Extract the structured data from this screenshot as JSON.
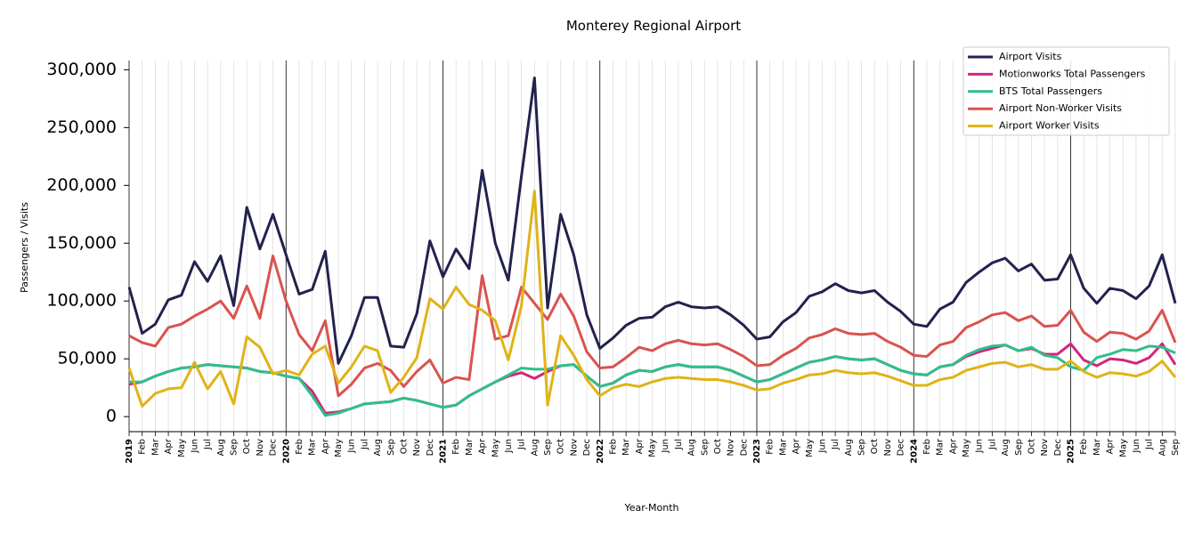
{
  "chart_data": {
    "type": "line",
    "title": "Monterey Regional Airport",
    "xlabel": "Year-Month",
    "ylabel": "Passengers / Visits",
    "categories": [
      "2019",
      "Feb",
      "Mar",
      "Apr",
      "May",
      "Jun",
      "Jul",
      "Aug",
      "Sep",
      "Oct",
      "Nov",
      "Dec",
      "2020",
      "Feb",
      "Mar",
      "Apr",
      "May",
      "Jun",
      "Jul",
      "Aug",
      "Sep",
      "Oct",
      "Nov",
      "Dec",
      "2021",
      "Feb",
      "Mar",
      "Apr",
      "May",
      "Jun",
      "Jul",
      "Aug",
      "Sep",
      "Oct",
      "Nov",
      "Dec",
      "2022",
      "Feb",
      "Mar",
      "Apr",
      "May",
      "Jun",
      "Jul",
      "Aug",
      "Sep",
      "Oct",
      "Nov",
      "Dec",
      "2023",
      "Feb",
      "Mar",
      "Apr",
      "May",
      "Jun",
      "Jul",
      "Aug",
      "Sep",
      "Oct",
      "Nov",
      "Dec",
      "2024",
      "Feb",
      "Mar",
      "Apr",
      "May",
      "Jun",
      "Jul",
      "Aug",
      "Sep",
      "Oct",
      "Nov",
      "Dec",
      "2025",
      "Feb",
      "Mar",
      "Apr",
      "May",
      "Jun",
      "Jul",
      "Aug",
      "Sep"
    ],
    "series": [
      {
        "name": "Airport Visits",
        "color": "#22224f",
        "values": [
          112000,
          72000,
          80000,
          101000,
          105000,
          134000,
          117000,
          139000,
          96000,
          181000,
          145000,
          175000,
          140000,
          106000,
          110000,
          143000,
          46000,
          70000,
          103000,
          103000,
          61000,
          60000,
          89000,
          152000,
          121000,
          145000,
          128000,
          213000,
          150000,
          118000,
          208000,
          293000,
          94000,
          175000,
          140000,
          88000,
          59000,
          68000,
          79000,
          85000,
          86000,
          95000,
          99000,
          95000,
          94000,
          95000,
          88000,
          79000,
          67000,
          69000,
          82000,
          90000,
          104000,
          108000,
          115000,
          109000,
          107000,
          109000,
          99000,
          91000,
          80000,
          78000,
          93000,
          99000,
          116000,
          125000,
          133000,
          137000,
          126000,
          132000,
          118000,
          119000,
          140000,
          111000,
          98000,
          111000,
          109000,
          102000,
          113000,
          140000,
          98000
        ]
      },
      {
        "name": "Motionworks Total Passengers",
        "color": "#d4247f",
        "values": [
          28000,
          30000,
          35000,
          39000,
          42000,
          43000,
          45000,
          44000,
          43000,
          42000,
          39000,
          38000,
          35000,
          33000,
          22000,
          3000,
          4000,
          7000,
          11000,
          12000,
          13000,
          16000,
          14000,
          11000,
          8000,
          10000,
          18000,
          24000,
          30000,
          35000,
          38000,
          33000,
          39000,
          44000,
          45000,
          35000,
          26000,
          29000,
          36000,
          40000,
          39000,
          43000,
          45000,
          43000,
          43000,
          43000,
          40000,
          35000,
          30000,
          32000,
          37000,
          42000,
          47000,
          49000,
          52000,
          50000,
          49000,
          50000,
          45000,
          40000,
          37000,
          36000,
          43000,
          45000,
          52000,
          56000,
          59000,
          62000,
          57000,
          59000,
          54000,
          54000,
          63000,
          49000,
          44000,
          50000,
          49000,
          46000,
          51000,
          63000,
          45000
        ]
      },
      {
        "name": "BTS Total Passengers",
        "color": "#2ec08a",
        "values": [
          30000,
          30000,
          35000,
          39000,
          42000,
          43000,
          45000,
          44000,
          43000,
          42000,
          39000,
          38000,
          35000,
          33000,
          18000,
          1000,
          3000,
          7000,
          11000,
          12000,
          13000,
          16000,
          14000,
          11000,
          8000,
          10000,
          18000,
          24000,
          30000,
          36000,
          42000,
          41000,
          41000,
          44000,
          45000,
          35000,
          26000,
          29000,
          36000,
          40000,
          39000,
          43000,
          45000,
          43000,
          43000,
          43000,
          40000,
          35000,
          30000,
          32000,
          37000,
          42000,
          47000,
          49000,
          52000,
          50000,
          49000,
          50000,
          45000,
          40000,
          37000,
          36000,
          43000,
          45000,
          53000,
          58000,
          61000,
          62000,
          57000,
          60000,
          53000,
          51000,
          43000,
          40000,
          51000,
          54000,
          58000,
          57000,
          61000,
          60000,
          55000
        ]
      },
      {
        "name": "Airport Non-Worker Visits",
        "color": "#d9534f",
        "values": [
          70000,
          64000,
          61000,
          77000,
          80000,
          87000,
          93000,
          100000,
          85000,
          113000,
          85000,
          139000,
          100000,
          71000,
          57000,
          83000,
          18000,
          28000,
          42000,
          46000,
          40000,
          26000,
          39000,
          49000,
          29000,
          34000,
          32000,
          122000,
          67000,
          70000,
          112000,
          98000,
          84000,
          106000,
          87000,
          56000,
          42000,
          43000,
          51000,
          60000,
          57000,
          63000,
          66000,
          63000,
          62000,
          63000,
          58000,
          52000,
          44000,
          45000,
          53000,
          59000,
          68000,
          71000,
          76000,
          72000,
          71000,
          72000,
          65000,
          60000,
          53000,
          52000,
          62000,
          65000,
          77000,
          82000,
          88000,
          90000,
          83000,
          87000,
          78000,
          79000,
          92000,
          73000,
          65000,
          73000,
          72000,
          67000,
          74000,
          92000,
          64000
        ]
      },
      {
        "name": "Airport Worker Visits",
        "color": "#e0b317",
        "values": [
          42000,
          9000,
          20000,
          24000,
          25000,
          47000,
          24000,
          39000,
          11000,
          69000,
          60000,
          37000,
          40000,
          36000,
          54000,
          61000,
          29000,
          43000,
          61000,
          57000,
          21000,
          34000,
          51000,
          102000,
          93000,
          112000,
          97000,
          92000,
          83000,
          49000,
          96000,
          195000,
          10000,
          70000,
          53000,
          32000,
          18000,
          25000,
          28000,
          26000,
          30000,
          33000,
          34000,
          33000,
          32000,
          32000,
          30000,
          27000,
          23000,
          24000,
          29000,
          32000,
          36000,
          37000,
          40000,
          38000,
          37000,
          38000,
          35000,
          31000,
          27000,
          27000,
          32000,
          34000,
          40000,
          43000,
          46000,
          47000,
          43000,
          45000,
          41000,
          41000,
          48000,
          39000,
          34000,
          38000,
          37000,
          35000,
          39000,
          48000,
          34000
        ]
      }
    ],
    "ylim": [
      -13000,
      308000
    ],
    "yticks": [
      0,
      {
        "value": 50000,
        "label": "50,000"
      },
      {
        "value": 100000,
        "label": "100,000"
      },
      {
        "value": 150000,
        "label": "150,000"
      },
      {
        "value": 200000,
        "label": "200,000"
      },
      {
        "value": 250000,
        "label": "250,000"
      },
      {
        "value": 300000,
        "label": "300,000"
      }
    ],
    "grid": "x",
    "legend": "upper right"
  }
}
